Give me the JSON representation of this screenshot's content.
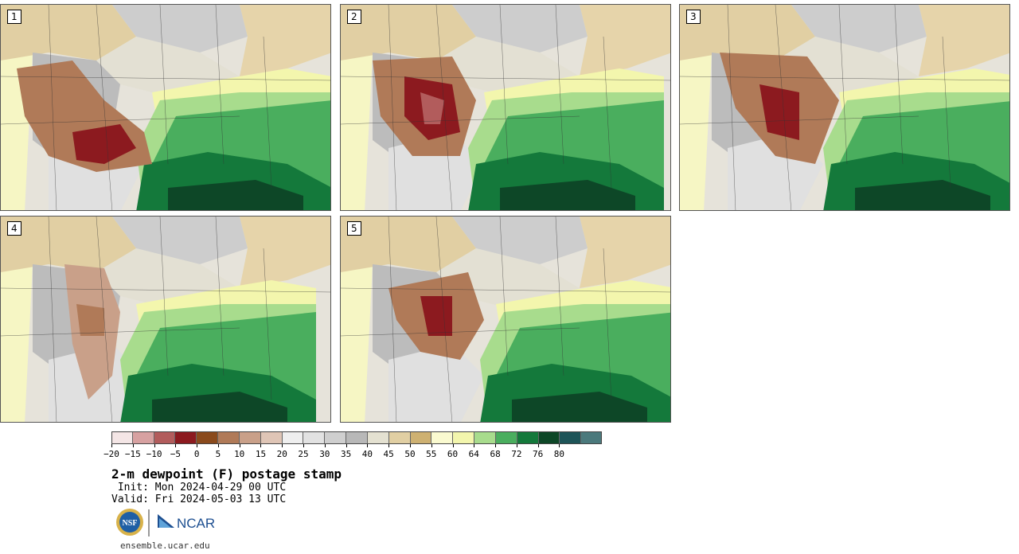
{
  "panels": [
    {
      "label": "1",
      "variant": 1
    },
    {
      "label": "2",
      "variant": 2
    },
    {
      "label": "3",
      "variant": 3
    },
    {
      "label": "4",
      "variant": 4
    },
    {
      "label": "5",
      "variant": 5
    }
  ],
  "colorbar": {
    "ticks": [
      "-20",
      "-15",
      "-10",
      "-5",
      "0",
      "5",
      "10",
      "15",
      "20",
      "25",
      "30",
      "35",
      "40",
      "45",
      "50",
      "55",
      "60",
      "64",
      "68",
      "72",
      "76",
      "80"
    ],
    "colors": [
      "#f4e6e6",
      "#d7a1a1",
      "#b25c5c",
      "#8c1a1f",
      "#8a4a1c",
      "#b07a58",
      "#c9a089",
      "#dfc5b6",
      "#efefef",
      "#e2e2e2",
      "#cfcfcf",
      "#b8b8b8",
      "#e4e1d1",
      "#e1cfa3",
      "#ceb172",
      "#fafad0",
      "#f3f6ad",
      "#a8dc8d",
      "#4aae5e",
      "#14793b",
      "#0d4727",
      "#1d5458",
      "#4b797c"
    ]
  },
  "title": "2-m dewpoint (F) postage stamp",
  "init": " Init: Mon 2024-04-29 00 UTC",
  "valid": "Valid: Fri 2024-05-03 13 UTC",
  "logos": {
    "nsf": "NSF",
    "ncar": "NCAR"
  },
  "url": "ensemble.ucar.edu"
}
